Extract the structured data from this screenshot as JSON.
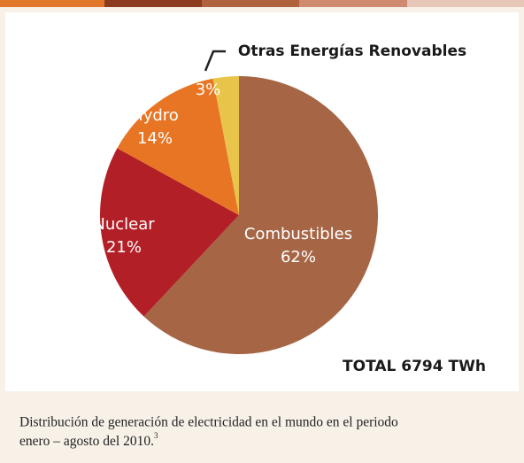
{
  "chart_data": {
    "type": "pie",
    "categories": [
      "Combustibles",
      "Nuclear",
      "Hydro",
      "Otras Energías Renovables"
    ],
    "values": [
      62,
      21,
      14,
      3
    ],
    "value_labels": [
      "62%",
      "21%",
      "14%",
      "3%"
    ],
    "colors": [
      "#a66646",
      "#b31f26",
      "#e87523",
      "#e8c54a"
    ],
    "annotation": "TOTAL 6794 TWh",
    "caption": [
      "Distribución de generación de electricidad en el mundo en el periodo",
      "enero – agosto del 2010."
    ],
    "footnote": "3"
  }
}
